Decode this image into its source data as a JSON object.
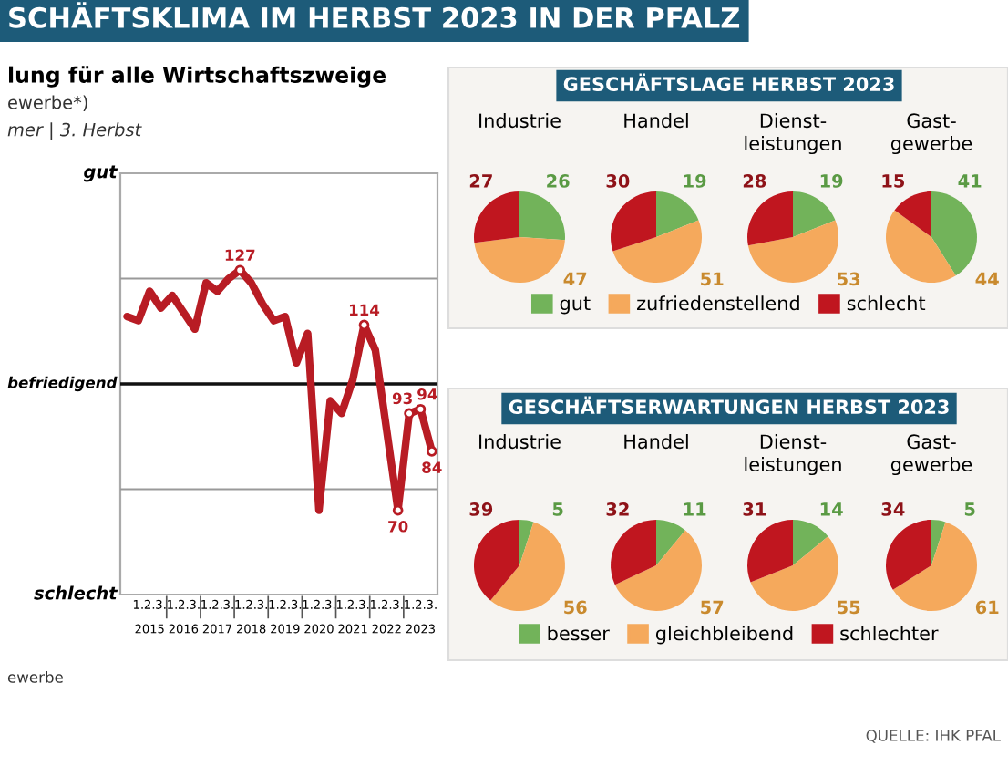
{
  "chart_data": [
    {
      "type": "line",
      "title": "SCHÄFTSKLIMA IM HERBST 2023 IN DER PFALZ",
      "subtitle": "lung für alle Wirtschaftszweige",
      "categories": [
        null,
        "1.",
        "2.",
        "3.",
        "1.",
        "2.",
        "3.",
        "1.",
        "2.",
        "3.",
        "1.",
        "2.",
        "3.",
        "1.",
        "2.",
        "3.",
        "1.",
        "2.",
        "3.",
        "1.",
        "2.",
        "3.",
        "1.",
        "2.",
        "3.",
        "1.",
        "2.",
        "3."
      ],
      "series": [
        {
          "color": "#b81c24",
          "values": [
            116,
            115,
            122,
            118,
            121,
            117,
            113,
            124,
            122,
            125,
            127,
            124,
            119,
            115,
            116,
            105,
            112,
            70,
            96,
            93,
            101,
            114,
            108,
            89,
            70,
            93,
            94,
            84
          ],
          "value_labels": [
            null,
            null,
            null,
            null,
            null,
            null,
            null,
            null,
            null,
            null,
            "127",
            null,
            null,
            null,
            null,
            null,
            null,
            null,
            null,
            null,
            null,
            "114",
            null,
            null,
            "70",
            "93",
            "94",
            "84"
          ]
        }
      ],
      "ylim": [
        50,
        150
      ],
      "ref_lines": [
        {
          "axis": "y",
          "value": 100,
          "label": "befriedigend",
          "color": "#111111"
        },
        {
          "axis": "y",
          "value": 75,
          "color": "#999999"
        },
        {
          "axis": "y",
          "value": 125,
          "color": "#999999"
        }
      ],
      "annotations": [
        "gut",
        "schlecht",
        "2015",
        "2016",
        "2017",
        "2018",
        "2019",
        "2020",
        "2021",
        "2022",
        "2023",
        "ewerbe*)",
        "mer | 3. Herbst",
        "ewerbe",
        "QUELLE: IHK PFAL"
      ]
    },
    {
      "type": "pie",
      "subtitle": "GESCHÄFTSLAGE HERBST 2023",
      "title": "Industrie",
      "categories": [
        "gut",
        "zufriedenstellend",
        "schlecht"
      ],
      "values": [
        26,
        47,
        27
      ],
      "colors": [
        "#72b35a",
        "#f5a95c",
        "#c0161f"
      ],
      "data_labels": true,
      "legend": "bottom"
    },
    {
      "type": "pie",
      "title": "Handel",
      "categories": [
        null,
        null,
        null
      ],
      "values": [
        19,
        51,
        30
      ],
      "colors": [
        "#72b35a",
        "#f5a95c",
        "#c0161f"
      ],
      "data_labels": true
    },
    {
      "type": "pie",
      "title": "Dienst-\nleistungen",
      "categories": [
        null,
        null,
        null
      ],
      "values": [
        19,
        53,
        28
      ],
      "colors": [
        "#72b35a",
        "#f5a95c",
        "#c0161f"
      ],
      "data_labels": true
    },
    {
      "type": "pie",
      "title": "Gast-\ngewerbe",
      "categories": [
        null,
        null,
        null
      ],
      "values": [
        41,
        44,
        15
      ],
      "colors": [
        "#72b35a",
        "#f5a95c",
        "#c0161f"
      ],
      "data_labels": true
    },
    {
      "type": "pie",
      "subtitle": "GESCHÄFTSERWARTUNGEN HERBST 2023",
      "title": "Industrie",
      "categories": [
        "besser",
        "gleichbleibend",
        "schlechter"
      ],
      "values": [
        5,
        56,
        39
      ],
      "colors": [
        "#72b35a",
        "#f5a95c",
        "#c0161f"
      ],
      "data_labels": true,
      "legend": "bottom"
    },
    {
      "type": "pie",
      "title": "Handel",
      "categories": [
        null,
        null,
        null
      ],
      "values": [
        11,
        57,
        32
      ],
      "colors": [
        "#72b35a",
        "#f5a95c",
        "#c0161f"
      ],
      "data_labels": true
    },
    {
      "type": "pie",
      "title": "Dienst-\nleistungen",
      "categories": [
        null,
        null,
        null
      ],
      "values": [
        14,
        55,
        31
      ],
      "colors": [
        "#72b35a",
        "#f5a95c",
        "#c0161f"
      ],
      "data_labels": true
    },
    {
      "type": "pie",
      "title": "Gast-\ngewerbe",
      "categories": [
        null,
        null,
        null
      ],
      "values": [
        5,
        61,
        34
      ],
      "colors": [
        "#72b35a",
        "#f5a95c",
        "#c0161f"
      ],
      "data_labels": true
    }
  ]
}
